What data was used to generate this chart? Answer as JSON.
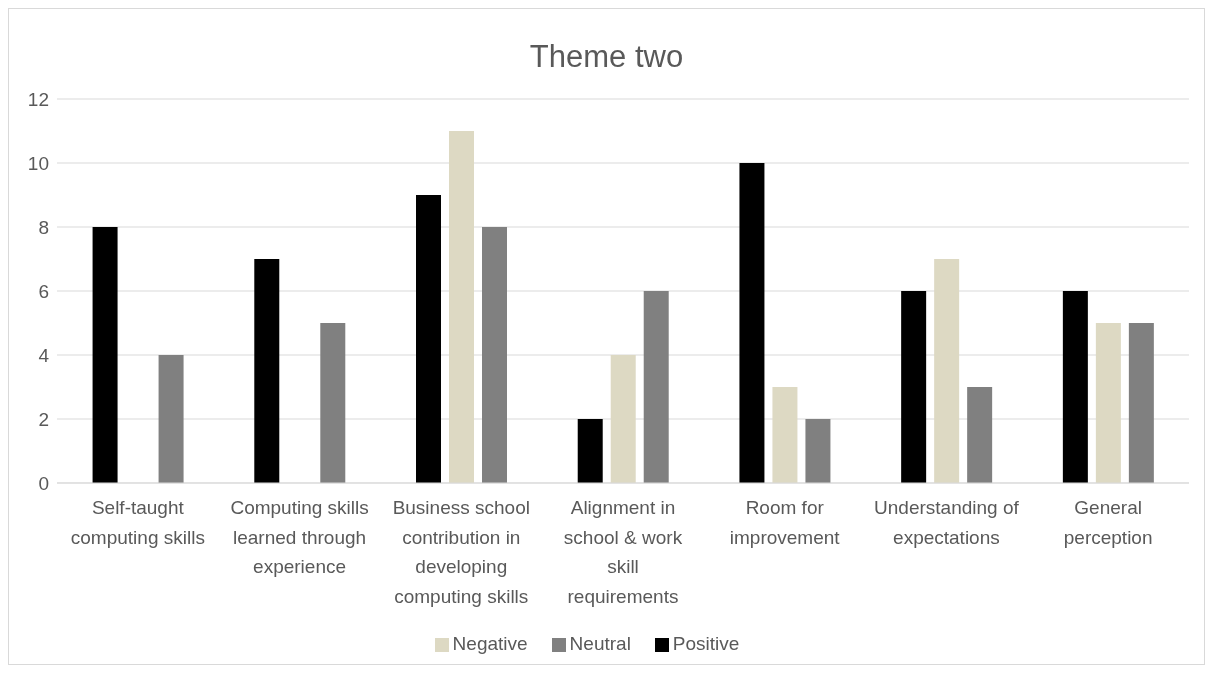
{
  "chart_data": {
    "type": "bar",
    "title": "Theme two",
    "categories": [
      "Self-taught computing skills",
      "Computing skills learned through experience",
      "Business school contribution in developing computing skills",
      "Alignment in school & work skill requirements",
      "Room for improvement",
      "Understanding of expectations",
      "General perception"
    ],
    "series": [
      {
        "name": "Positive",
        "color": "#000000",
        "values": [
          8,
          7,
          9,
          2,
          10,
          6,
          6
        ]
      },
      {
        "name": "Negative",
        "color": "#ddd9c3",
        "values": [
          0,
          0,
          11,
          4,
          3,
          7,
          5
        ]
      },
      {
        "name": "Neutral",
        "color": "#808080",
        "values": [
          4,
          5,
          8,
          6,
          2,
          3,
          5
        ]
      }
    ],
    "ylim": [
      0,
      12
    ],
    "yticks": [
      0,
      2,
      4,
      6,
      8,
      10,
      12
    ],
    "grid": "y",
    "legend": "bottom"
  }
}
